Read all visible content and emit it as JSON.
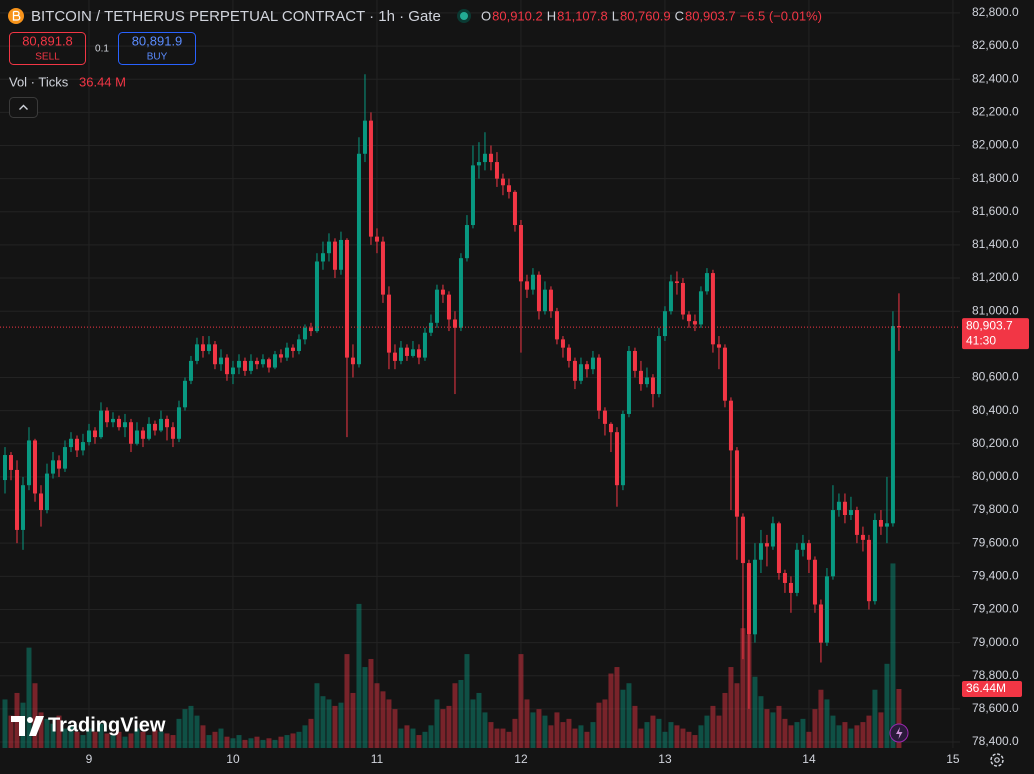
{
  "chart_data": {
    "type": "candlestick",
    "title": "BITCOIN / TETHERUS PERPETUAL CONTRACT · 1h · Gate",
    "ohlc_legend": [
      {
        "key": "O",
        "value": "80,910.2"
      },
      {
        "key": "H",
        "value": "81,107.8"
      },
      {
        "key": "L",
        "value": "80,760.9"
      },
      {
        "key": "C",
        "value": "80,903.7"
      }
    ],
    "change": "−6.5 (−0.01%)",
    "order_panel": {
      "sell_price": "80,891.8",
      "sell_label": "SELL",
      "quantity": "0.1",
      "buy_price": "80,891.9",
      "buy_label": "BUY"
    },
    "current_price_label": "80,903.7",
    "countdown": "41:30",
    "watermark": "TradingView",
    "up_color": "#089981",
    "down_color": "#f23645",
    "grid": true,
    "x": [
      8.4167,
      8.4583,
      8.5,
      8.5417,
      8.5833,
      8.625,
      8.6667,
      8.7083,
      8.75,
      8.7917,
      8.8333,
      8.875,
      8.9167,
      8.9583,
      9,
      9.0417,
      9.0833,
      9.125,
      9.1667,
      9.2083,
      9.25,
      9.2917,
      9.3333,
      9.375,
      9.4167,
      9.4583,
      9.5,
      9.5417,
      9.5833,
      9.625,
      9.6667,
      9.7083,
      9.75,
      9.7917,
      9.8333,
      9.875,
      9.9167,
      9.9583,
      10,
      10.0417,
      10.0833,
      10.125,
      10.1667,
      10.2083,
      10.25,
      10.2917,
      10.3333,
      10.375,
      10.4167,
      10.4583,
      10.5,
      10.5417,
      10.5833,
      10.625,
      10.6667,
      10.7083,
      10.75,
      10.7917,
      10.8333,
      10.875,
      10.9167,
      10.9583,
      11,
      11.0417,
      11.0833,
      11.125,
      11.1667,
      11.2083,
      11.25,
      11.2917,
      11.3333,
      11.375,
      11.4167,
      11.4583,
      11.5,
      11.5417,
      11.5833,
      11.625,
      11.6667,
      11.7083,
      11.75,
      11.7917,
      11.8333,
      11.875,
      11.9167,
      11.9583,
      12,
      12.0417,
      12.0833,
      12.125,
      12.1667,
      12.2083,
      12.25,
      12.2917,
      12.3333,
      12.375,
      12.4167,
      12.4583,
      12.5,
      12.5417,
      12.5833,
      12.625,
      12.6667,
      12.7083,
      12.75,
      12.7917,
      12.8333,
      12.875,
      12.9167,
      12.9583,
      13,
      13.0417,
      13.0833,
      13.125,
      13.1667,
      13.2083,
      13.25,
      13.2917,
      13.3333,
      13.375,
      13.4167,
      13.4583,
      13.5,
      13.5417,
      13.5833,
      13.625,
      13.6667,
      13.7083,
      13.75,
      13.7917,
      13.8333,
      13.875,
      13.9167,
      13.9583,
      14,
      14.0417,
      14.0833,
      14.125,
      14.1667,
      14.2083,
      14.25,
      14.2917,
      14.3333,
      14.375,
      14.4167,
      14.4583,
      14.5,
      14.5417,
      14.5833,
      14.625
    ],
    "xlim": [
      8.382,
      15.049
    ],
    "xticks": [
      9,
      10,
      11,
      12,
      13,
      14,
      15
    ],
    "open": [
      79981,
      80132,
      80042,
      79680,
      79950,
      80220,
      79900,
      79800,
      80020,
      80100,
      80050,
      80180,
      80230,
      80160,
      80210,
      80280,
      80240,
      80400,
      80330,
      80350,
      80300,
      80330,
      80200,
      80280,
      80230,
      80320,
      80280,
      80350,
      80300,
      80230,
      80420,
      80580,
      80700,
      80800,
      80760,
      80800,
      80680,
      80720,
      80620,
      80660,
      80700,
      80640,
      80700,
      80680,
      80710,
      80660,
      80740,
      80720,
      80780,
      80760,
      80830,
      80900,
      80880,
      81300,
      81350,
      81420,
      81250,
      81430,
      80720,
      80680,
      81950,
      82150,
      81450,
      81420,
      81100,
      80750,
      80700,
      80780,
      80730,
      80770,
      80720,
      80870,
      80930,
      81130,
      81100,
      80950,
      80900,
      81320,
      81520,
      81880,
      81900,
      81950,
      81900,
      81800,
      81760,
      81720,
      81520,
      81180,
      81130,
      81220,
      81000,
      81130,
      81000,
      80830,
      80780,
      80700,
      80580,
      80680,
      80650,
      80720,
      80400,
      80320,
      80270,
      79950,
      80380,
      80760,
      80640,
      80560,
      80600,
      80500,
      80850,
      81000,
      81180,
      81170,
      80980,
      80940,
      80920,
      81120,
      81230,
      80800,
      80780,
      80460,
      80160,
      79760,
      79480,
      79050,
      79500,
      79600,
      79580,
      79720,
      79420,
      79360,
      79300,
      79560,
      79600,
      79500,
      79230,
      79000,
      79400,
      79800,
      79850,
      79770,
      79800,
      79650,
      79620,
      79250,
      79740,
      79700,
      79720,
      80910.2
    ],
    "high": [
      80180,
      80150,
      80100,
      80000,
      80300,
      80230,
      79950,
      80080,
      80150,
      80130,
      80220,
      80270,
      80250,
      80260,
      80320,
      80300,
      80450,
      80420,
      80390,
      80370,
      80380,
      80350,
      80330,
      80300,
      80360,
      80340,
      80400,
      80370,
      80330,
      80460,
      80600,
      80730,
      80840,
      80850,
      80850,
      80820,
      80770,
      80740,
      80700,
      80740,
      80720,
      80740,
      80720,
      80740,
      80720,
      80760,
      80770,
      80810,
      80800,
      80860,
      80920,
      80930,
      81350,
      81420,
      81470,
      81440,
      81480,
      81440,
      80800,
      82050,
      82430,
      82200,
      81500,
      81450,
      81150,
      80800,
      80820,
      80800,
      80820,
      80800,
      80900,
      80980,
      81160,
      81160,
      81120,
      81000,
      81350,
      81580,
      82000,
      82020,
      82080,
      82000,
      81960,
      81830,
      81800,
      81730,
      81550,
      81220,
      81260,
      81240,
      81180,
      81150,
      81020,
      80850,
      80800,
      80720,
      80720,
      80700,
      80760,
      80740,
      80420,
      80330,
      80300,
      80400,
      80790,
      80780,
      80700,
      80660,
      80620,
      80900,
      81030,
      81220,
      81240,
      81200,
      81000,
      80980,
      81150,
      81260,
      81250,
      80850,
      80800,
      80480,
      80180,
      79780,
      79500,
      79600,
      79680,
      79650,
      79760,
      79730,
      79440,
      79400,
      79600,
      79650,
      79620,
      79520,
      79260,
      79450,
      79950,
      79900,
      79900,
      79880,
      79820,
      79700,
      79650,
      79780,
      79800,
      80000,
      81000,
      81107.8
    ],
    "low": [
      79900,
      79980,
      79600,
      79560,
      79920,
      79850,
      79700,
      79780,
      79990,
      80000,
      80030,
      80150,
      80120,
      80130,
      80190,
      80200,
      80230,
      80300,
      80300,
      80280,
      80240,
      80150,
      80190,
      80180,
      80220,
      80250,
      80270,
      80220,
      80180,
      80210,
      80400,
      80560,
      80680,
      80720,
      80740,
      80650,
      80640,
      80580,
      80560,
      80620,
      80610,
      80620,
      80650,
      80660,
      80630,
      80650,
      80690,
      80700,
      80720,
      80740,
      80800,
      80850,
      80870,
      81250,
      81300,
      81200,
      81220,
      80240,
      80600,
      80660,
      81900,
      81400,
      81350,
      81050,
      80650,
      80650,
      80680,
      80700,
      80720,
      80680,
      80700,
      80850,
      80900,
      81050,
      80880,
      80500,
      80880,
      81300,
      81500,
      81800,
      81850,
      81850,
      81750,
      81700,
      81680,
      81480,
      80750,
      81080,
      81100,
      80950,
      80980,
      80960,
      80800,
      80720,
      80660,
      80530,
      80560,
      80600,
      80620,
      80350,
      80250,
      80150,
      79820,
      79920,
      80360,
      80600,
      80520,
      80540,
      80420,
      80480,
      80820,
      80980,
      81100,
      80950,
      80900,
      80880,
      80900,
      81100,
      80750,
      80650,
      80420,
      79800,
      79500,
      78900,
      78600,
      79000,
      79420,
      79460,
      79560,
      79380,
      79300,
      79180,
      79280,
      79520,
      79420,
      79180,
      78880,
      78980,
      79380,
      79760,
      79720,
      79740,
      79600,
      79550,
      79200,
      79230,
      79650,
      79600,
      79700,
      80760.9
    ],
    "close": [
      80132,
      80042,
      79680,
      79950,
      80220,
      79900,
      79800,
      80020,
      80100,
      80050,
      80180,
      80230,
      80160,
      80210,
      80280,
      80240,
      80400,
      80330,
      80350,
      80300,
      80330,
      80200,
      80280,
      80230,
      80320,
      80280,
      80350,
      80300,
      80230,
      80420,
      80580,
      80700,
      80800,
      80760,
      80800,
      80680,
      80720,
      80620,
      80660,
      80700,
      80640,
      80700,
      80680,
      80710,
      80660,
      80740,
      80720,
      80780,
      80760,
      80830,
      80900,
      80880,
      81300,
      81350,
      81420,
      81250,
      81430,
      80720,
      80680,
      81950,
      82150,
      81450,
      81420,
      81100,
      80750,
      80700,
      80780,
      80730,
      80770,
      80720,
      80870,
      80930,
      81130,
      81100,
      80950,
      80900,
      81320,
      81520,
      81880,
      81900,
      81950,
      81900,
      81800,
      81760,
      81720,
      81520,
      81180,
      81130,
      81220,
      81000,
      81130,
      81000,
      80830,
      80780,
      80700,
      80580,
      80680,
      80650,
      80720,
      80400,
      80320,
      80270,
      79950,
      80380,
      80760,
      80640,
      80560,
      80600,
      80500,
      80850,
      81000,
      81180,
      81170,
      80980,
      80940,
      80920,
      81120,
      81230,
      80800,
      80780,
      80460,
      80160,
      79760,
      79480,
      79050,
      79500,
      79600,
      79580,
      79720,
      79420,
      79360,
      79300,
      79560,
      79600,
      79500,
      79230,
      79000,
      79400,
      79800,
      79850,
      79770,
      79800,
      79650,
      79620,
      79250,
      79740,
      79700,
      79720,
      80910.2,
      80903.7
    ],
    "ylim": [
      78364,
      82878
    ],
    "yticks": [
      {
        "value": 78400,
        "label": "78,400.0"
      },
      {
        "value": 78600,
        "label": "78,600.0"
      },
      {
        "value": 78800,
        "label": "78,800.0"
      },
      {
        "value": 79000,
        "label": "79,000.0"
      },
      {
        "value": 79200,
        "label": "79,200.0"
      },
      {
        "value": 79400,
        "label": "79,400.0"
      },
      {
        "value": 79600,
        "label": "79,600.0"
      },
      {
        "value": 79800,
        "label": "79,800.0"
      },
      {
        "value": 80000,
        "label": "80,000.0"
      },
      {
        "value": 80200,
        "label": "80,200.0"
      },
      {
        "value": 80400,
        "label": "80,400.0"
      },
      {
        "value": 80600,
        "label": "80,600.0"
      },
      {
        "value": 81000,
        "label": "81,000.0"
      },
      {
        "value": 81200,
        "label": "81,200.0"
      },
      {
        "value": 81400,
        "label": "81,400.0"
      },
      {
        "value": 81600,
        "label": "81,600.0"
      },
      {
        "value": 81800,
        "label": "81,800.0"
      },
      {
        "value": 82000,
        "label": "82,000.0"
      },
      {
        "value": 82200,
        "label": "82,200.0"
      },
      {
        "value": 82400,
        "label": "82,400.0"
      },
      {
        "value": 82600,
        "label": "82,600.0"
      },
      {
        "value": 82800,
        "label": "82,800.0"
      }
    ],
    "y2lim": [
      0,
      462
    ],
    "volume": {
      "name": "Vol · Ticks",
      "axis": "y2",
      "legend_value": "36.44 M",
      "last_label": "36.44M",
      "values": [
        30,
        20,
        34,
        28,
        62,
        40,
        22,
        18,
        15,
        20,
        12,
        14,
        10,
        8,
        12,
        10,
        15,
        9,
        8,
        10,
        7,
        9,
        12,
        10,
        8,
        11,
        10,
        9,
        8,
        18,
        24,
        26,
        20,
        14,
        8,
        10,
        12,
        7,
        6,
        8,
        5,
        6,
        7,
        5,
        6,
        5,
        7,
        8,
        9,
        10,
        14,
        18,
        40,
        32,
        30,
        26,
        28,
        58,
        34,
        89,
        50,
        55,
        40,
        35,
        30,
        24,
        12,
        14,
        12,
        8,
        10,
        14,
        30,
        24,
        26,
        40,
        42,
        58,
        30,
        34,
        22,
        16,
        12,
        12,
        10,
        18,
        58,
        30,
        22,
        24,
        20,
        14,
        22,
        16,
        18,
        12,
        14,
        10,
        16,
        28,
        30,
        46,
        50,
        36,
        40,
        26,
        12,
        16,
        20,
        18,
        10,
        16,
        14,
        12,
        10,
        8,
        14,
        20,
        26,
        20,
        34,
        50,
        40,
        74,
        70,
        44,
        32,
        24,
        22,
        26,
        18,
        14,
        16,
        18,
        10,
        24,
        36,
        30,
        20,
        14,
        16,
        12,
        14,
        16,
        20,
        36,
        22,
        52,
        114,
        36.44
      ]
    }
  }
}
